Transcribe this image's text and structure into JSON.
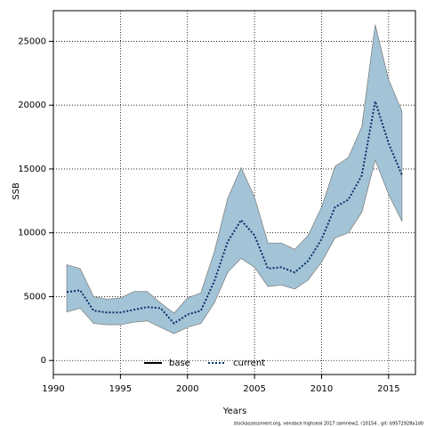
{
  "chart_data": {
    "type": "line",
    "xlabel": "Years",
    "ylabel": "SSB",
    "footnote": "stockassessment.org, vendace highseal 2017 samnew2, r10154 , git: b9572928a1d0",
    "x": [
      1991,
      1992,
      1993,
      1994,
      1995,
      1996,
      1997,
      1998,
      1999,
      2000,
      2001,
      2002,
      2003,
      2004,
      2005,
      2006,
      2007,
      2008,
      2009,
      2010,
      2011,
      2012,
      2013,
      2014,
      2015,
      2016
    ],
    "series": [
      {
        "name": "base",
        "color": "#000000"
      },
      {
        "name": "current",
        "color": "#08306b",
        "band_color": "#a3c4d6",
        "values": [
          5360,
          5500,
          3900,
          3760,
          3760,
          3970,
          4180,
          4100,
          2900,
          3600,
          3900,
          6200,
          9300,
          11000,
          9800,
          7200,
          7300,
          6900,
          7800,
          9500,
          12000,
          12600,
          14500,
          20300,
          17000,
          14500
        ],
        "lower": [
          3800,
          4100,
          2900,
          2800,
          2800,
          3000,
          3100,
          2600,
          2100,
          2600,
          2900,
          4500,
          6900,
          8000,
          7300,
          5800,
          5900,
          5600,
          6300,
          7700,
          9600,
          10000,
          11600,
          15700,
          13000,
          10900
        ],
        "upper": [
          7500,
          7200,
          5000,
          4800,
          4900,
          5400,
          5400,
          4500,
          3700,
          4900,
          5300,
          8500,
          12700,
          15100,
          12800,
          9200,
          9200,
          8700,
          9800,
          12000,
          15200,
          15900,
          18300,
          26300,
          22000,
          19500
        ]
      }
    ],
    "xlim": [
      1990,
      2017
    ],
    "xticks": [
      1990,
      1995,
      2000,
      2005,
      2010,
      2015
    ],
    "ylim": [
      -1100,
      27400
    ],
    "yticks": [
      0,
      5000,
      10000,
      15000,
      20000,
      25000
    ],
    "grid": true,
    "legend": "bottom"
  }
}
